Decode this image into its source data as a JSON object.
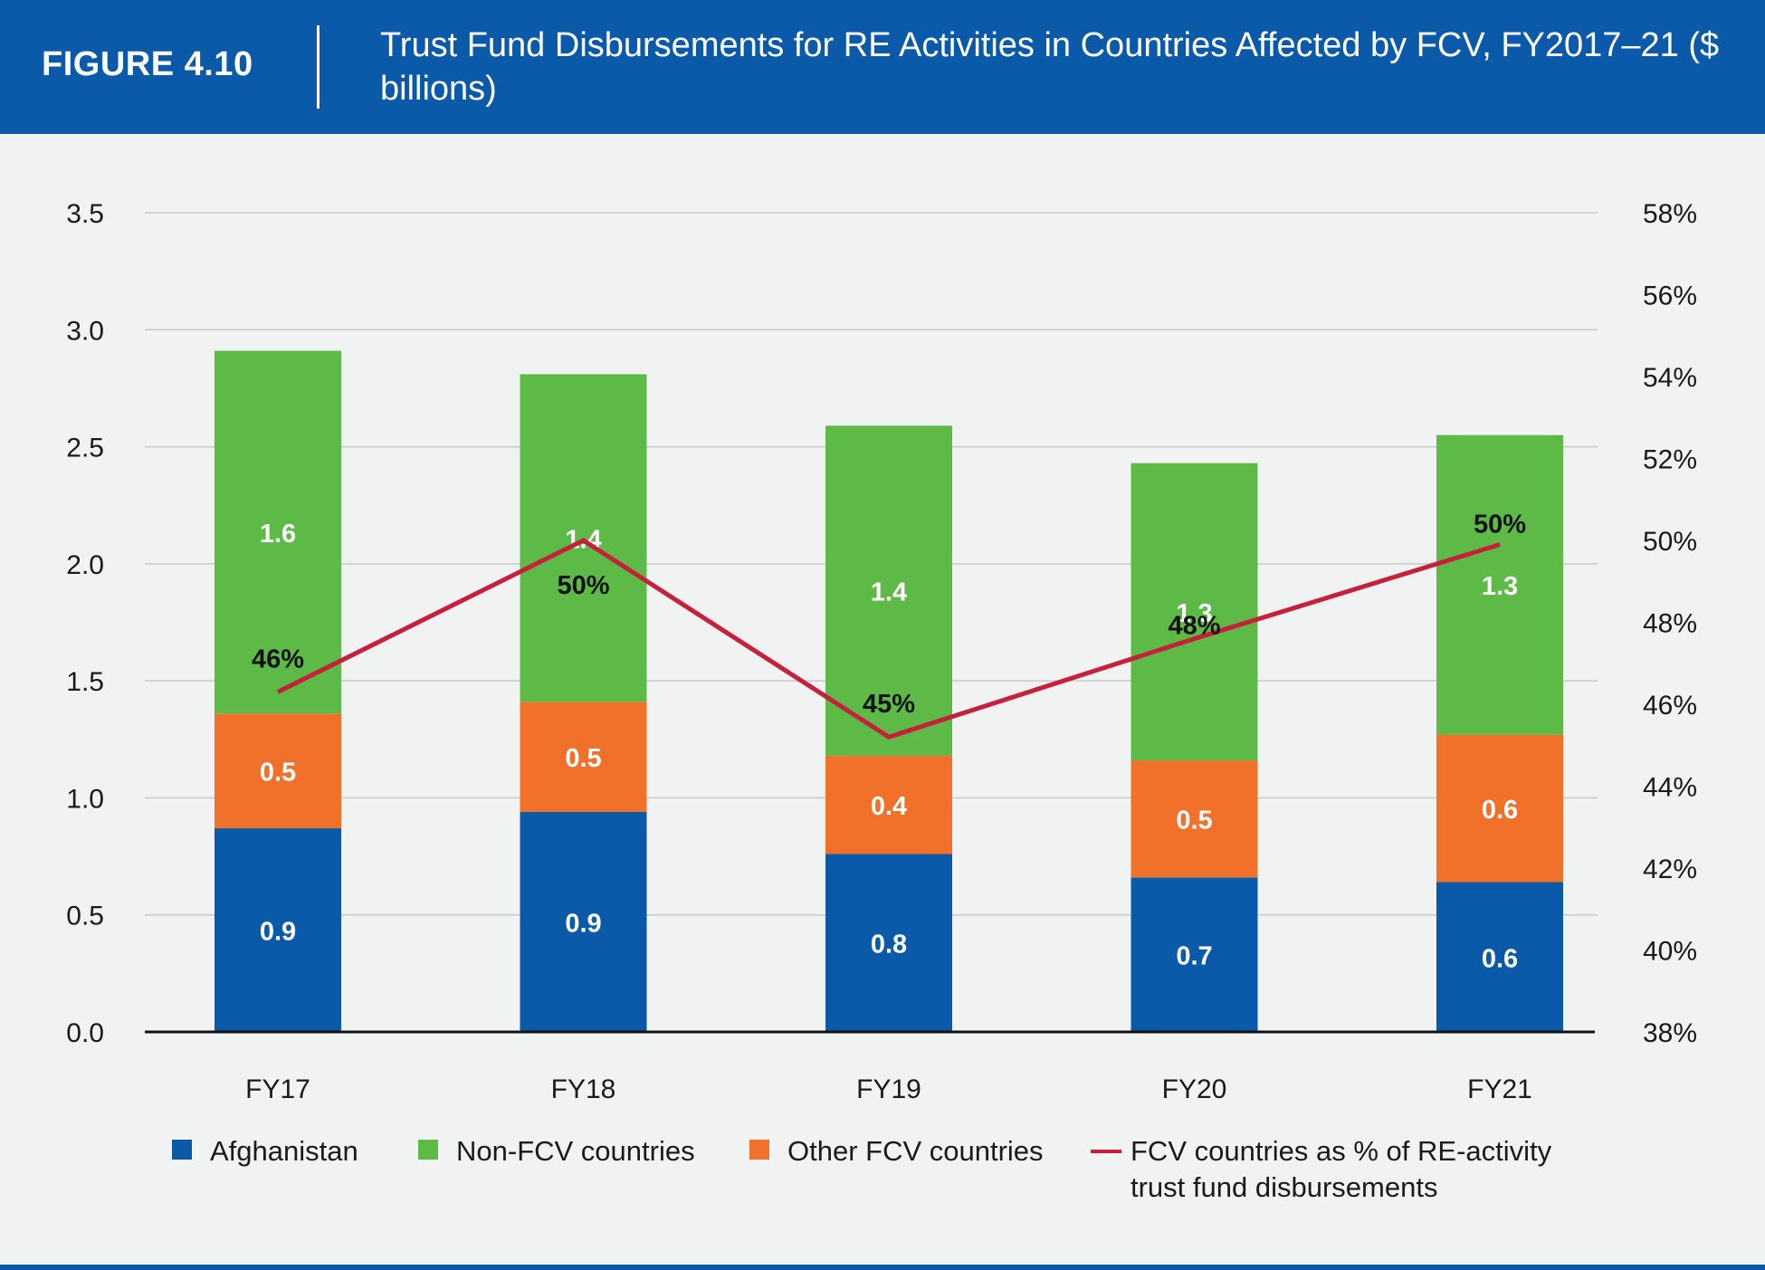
{
  "header": {
    "figure_label": "FIGURE 4.10",
    "title": "Trust Fund Disbursements for RE Activities in Countries Affected by FCV, FY2017–21 ($ billions)"
  },
  "chart_data": {
    "type": "bar",
    "stacked": true,
    "title": "Trust Fund Disbursements for RE Activities in Countries Affected by FCV, FY2017–21 ($ billions)",
    "categories": [
      "FY17",
      "FY18",
      "FY19",
      "FY20",
      "FY21"
    ],
    "series": [
      {
        "name": "Afghanistan",
        "color": "#0b5aa9",
        "values": [
          0.87,
          0.94,
          0.76,
          0.66,
          0.64
        ],
        "labels": [
          "0.9",
          "0.9",
          "0.8",
          "0.7",
          "0.6"
        ]
      },
      {
        "name": "Other FCV countries",
        "color": "#f1702a",
        "values": [
          0.49,
          0.47,
          0.42,
          0.5,
          0.63
        ],
        "labels": [
          "0.5",
          "0.5",
          "0.4",
          "0.5",
          "0.6"
        ]
      },
      {
        "name": "Non-FCV countries",
        "color": "#5eba47",
        "values": [
          1.55,
          1.4,
          1.41,
          1.27,
          1.28
        ],
        "labels": [
          "1.6",
          "1.4",
          "1.4",
          "1.3",
          "1.3"
        ]
      }
    ],
    "line_series": {
      "name": "FCV countries as % of RE-activity trust fund disbursements",
      "color": "#c5203c",
      "axis": "right",
      "values": [
        46.3,
        50.0,
        45.2,
        47.6,
        49.9
      ],
      "labels": [
        "46%",
        "50%",
        "45%",
        "48%",
        "50%"
      ]
    },
    "y_left": {
      "min": 0,
      "max": 3.5,
      "ticks": [
        "0.0",
        "0.5",
        "1.0",
        "1.5",
        "2.0",
        "2.5",
        "3.0",
        "3.5"
      ]
    },
    "y_right": {
      "min": 38,
      "max": 58,
      "ticks": [
        "38%",
        "40%",
        "42%",
        "44%",
        "46%",
        "48%",
        "50%",
        "52%",
        "54%",
        "56%",
        "58%"
      ]
    },
    "grid": true,
    "legend_position": "bottom"
  },
  "legend": [
    {
      "label": "Afghanistan",
      "color": "#0b5aa9",
      "kind": "square"
    },
    {
      "label": "Non-FCV countries",
      "color": "#5eba47",
      "kind": "square"
    },
    {
      "label": "Other FCV countries",
      "color": "#f1702a",
      "kind": "square"
    },
    {
      "label": "FCV countries as % of RE-activity trust fund disbursements",
      "color": "#c5203c",
      "kind": "line"
    }
  ]
}
